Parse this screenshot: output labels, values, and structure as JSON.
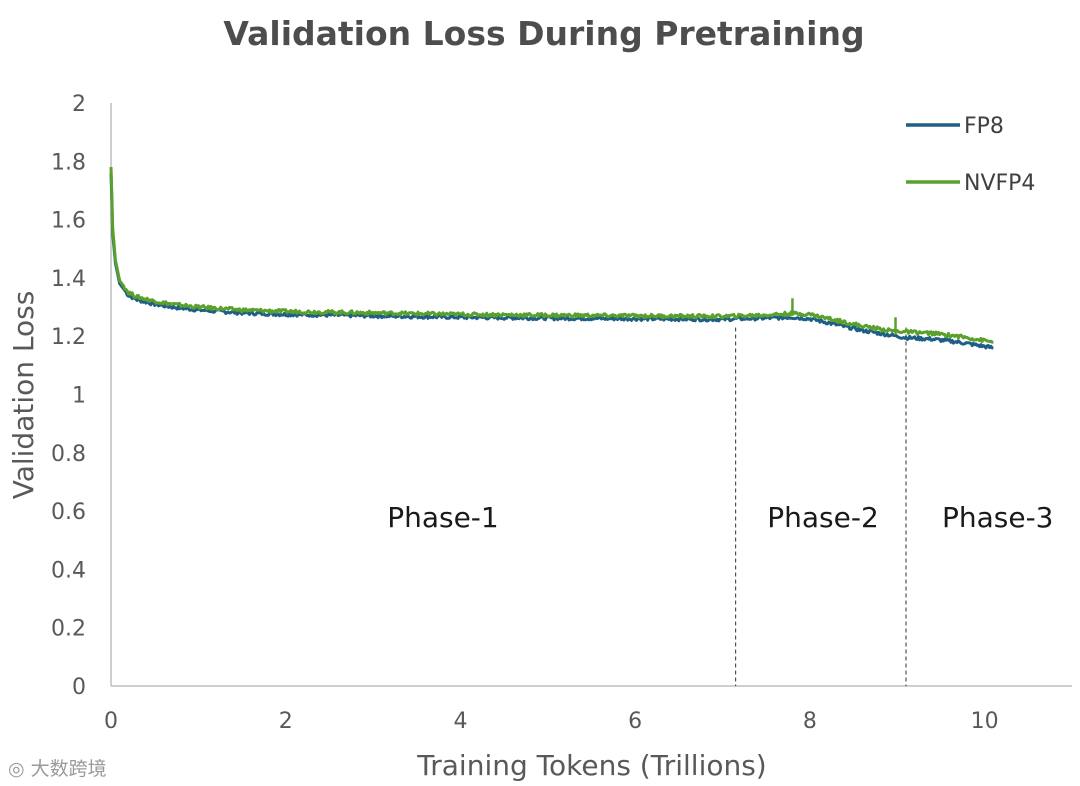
{
  "chart_data": {
    "type": "line",
    "title": "Validation Loss During Pretraining",
    "xlabel": "Training Tokens (Trillions)",
    "ylabel": "Validation Loss",
    "xlim": [
      0,
      11
    ],
    "ylim": [
      0,
      2
    ],
    "xticks": [
      0,
      2,
      4,
      6,
      8,
      10
    ],
    "xtick_labels": [
      "0",
      "2",
      "4",
      "6",
      "8",
      "10"
    ],
    "yticks": [
      0,
      0.2,
      0.4,
      0.6,
      0.8,
      1,
      1.2,
      1.4,
      1.6,
      1.8,
      2
    ],
    "ytick_labels": [
      "0",
      "0.2",
      "0.4",
      "0.6",
      "0.8",
      "1",
      "1.2",
      "1.4",
      "1.6",
      "1.8",
      "2"
    ],
    "grid": false,
    "legend_position": "top-right",
    "series": [
      {
        "name": "FP8",
        "color": "#1f5f86",
        "x": [
          0,
          0.02,
          0.05,
          0.1,
          0.2,
          0.3,
          0.5,
          0.7,
          1,
          1.5,
          2,
          3,
          4,
          5,
          6,
          7,
          7.2,
          7.5,
          7.8,
          8,
          8.3,
          8.6,
          8.9,
          9.1,
          9.4,
          9.7,
          10,
          10.1
        ],
        "values": [
          1.76,
          1.55,
          1.45,
          1.38,
          1.34,
          1.325,
          1.31,
          1.3,
          1.29,
          1.28,
          1.275,
          1.27,
          1.265,
          1.262,
          1.26,
          1.258,
          1.26,
          1.262,
          1.265,
          1.26,
          1.24,
          1.22,
          1.205,
          1.195,
          1.19,
          1.18,
          1.165,
          1.16
        ]
      },
      {
        "name": "NVFP4",
        "color": "#5aa02c",
        "x": [
          0,
          0.02,
          0.05,
          0.1,
          0.2,
          0.3,
          0.5,
          0.7,
          1,
          1.5,
          2,
          3,
          4,
          5,
          6,
          7,
          7.2,
          7.5,
          7.8,
          8,
          8.3,
          8.6,
          8.9,
          9.1,
          9.4,
          9.7,
          10,
          10.1
        ],
        "values": [
          1.78,
          1.57,
          1.46,
          1.39,
          1.35,
          1.335,
          1.32,
          1.31,
          1.3,
          1.29,
          1.285,
          1.28,
          1.275,
          1.272,
          1.27,
          1.268,
          1.27,
          1.273,
          1.278,
          1.275,
          1.255,
          1.235,
          1.22,
          1.215,
          1.21,
          1.2,
          1.185,
          1.18
        ]
      }
    ],
    "spikes": [
      {
        "series": "NVFP4",
        "x": 7.8,
        "value": 1.33
      },
      {
        "series": "NVFP4",
        "x": 8.98,
        "value": 1.265
      }
    ],
    "phase_boundaries": [
      7.15,
      9.1
    ],
    "annotations": [
      {
        "text": "Phase-1",
        "x": 3.8,
        "y": 0.58
      },
      {
        "text": "Phase-2",
        "x": 8.15,
        "y": 0.58
      },
      {
        "text": "Phase-3",
        "x": 10.15,
        "y": 0.58
      }
    ]
  },
  "watermark": "大数跨境",
  "watermark_icon": "wechat-logo-icon"
}
